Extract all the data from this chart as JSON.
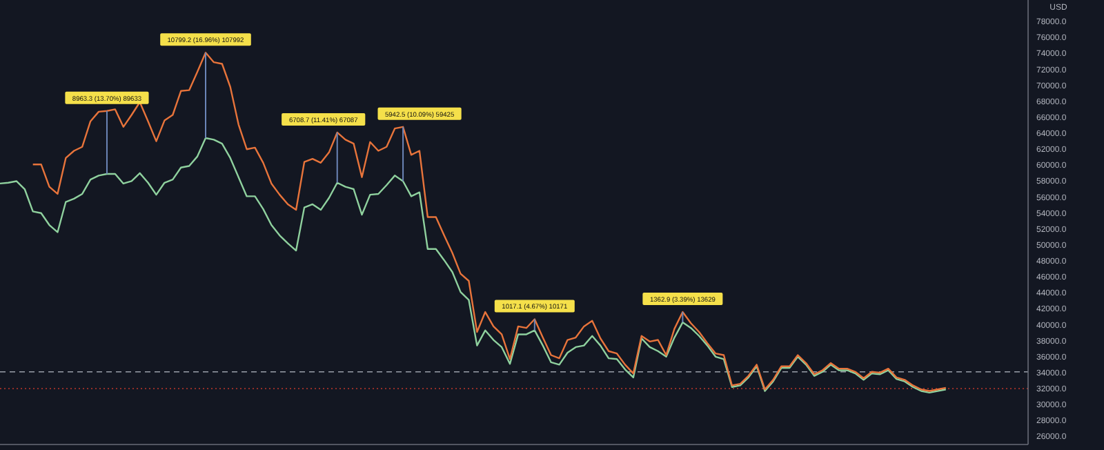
{
  "chart_data": {
    "type": "line",
    "ylabel": "USD",
    "categories": [
      null,
      null,
      null,
      null,
      null,
      null,
      null,
      null,
      null,
      null,
      null,
      null,
      null,
      null,
      null,
      null,
      null,
      null,
      null,
      null,
      null,
      null,
      null,
      null,
      null,
      null,
      null,
      null,
      null,
      null,
      null,
      null,
      null,
      null,
      null,
      null,
      null,
      null,
      null,
      null,
      null,
      null,
      null,
      null,
      null,
      null,
      null,
      null,
      null,
      null,
      null,
      null,
      null,
      null,
      null,
      null,
      null,
      null,
      null,
      null,
      null,
      null,
      null,
      null,
      null,
      null,
      null,
      null,
      null,
      null,
      null,
      null,
      null,
      null,
      null,
      null,
      null,
      null,
      null,
      null,
      null,
      null,
      null,
      null,
      null,
      null,
      null,
      null,
      null,
      null,
      null,
      null,
      null,
      null,
      null,
      null,
      null,
      null,
      null,
      null,
      null,
      null,
      null,
      null,
      null,
      null,
      null,
      null,
      null,
      null,
      null,
      null,
      null,
      null,
      null,
      null,
      null,
      null,
      null,
      null,
      null,
      null,
      null,
      null,
      null
    ],
    "series": [
      {
        "color": "#8fd19e",
        "values": [
          57700,
          57800,
          58000,
          57000,
          54200,
          54000,
          52500,
          51600,
          55400,
          55800,
          56400,
          58200,
          58700,
          58900,
          58900,
          57700,
          58000,
          59000,
          57800,
          56300,
          57800,
          58200,
          59700,
          59900,
          61100,
          63400,
          63200,
          62700,
          60900,
          58500,
          56100,
          56100,
          54500,
          52500,
          51200,
          50200,
          49300,
          54700,
          55100,
          54400,
          55900,
          57800,
          57300,
          57000,
          53800,
          56300,
          56400,
          57500,
          58700,
          58000,
          56100,
          56600,
          49500,
          49500,
          48100,
          46600,
          44100,
          43100,
          37400,
          39300,
          38100,
          37200,
          35100,
          38800,
          38800,
          39300,
          37400,
          35300,
          35000,
          36500,
          37200,
          37400,
          38600,
          37400,
          35800,
          35700,
          34400,
          33400,
          38300,
          37200,
          36700,
          36000,
          38400,
          40300,
          39600,
          38600,
          37400,
          36000,
          35700,
          32200,
          32400,
          33400,
          34800,
          31700,
          32900,
          34600,
          34600,
          36000,
          35000,
          33600,
          34100,
          35000,
          34300,
          34300,
          33900,
          33100,
          33900,
          33800,
          34300,
          33200,
          32900,
          32200,
          31700,
          31500,
          31700,
          31900,
          null,
          null,
          null,
          null,
          null,
          null,
          null,
          null,
          null
        ]
      },
      {
        "color": "#e8743b",
        "values": [
          null,
          null,
          null,
          null,
          60100,
          60100,
          57300,
          56400,
          60900,
          61800,
          62300,
          65500,
          66700,
          66800,
          67000,
          64800,
          66300,
          67900,
          65500,
          63000,
          65600,
          66300,
          69300,
          69400,
          71700,
          74100,
          72900,
          72700,
          69800,
          65100,
          62000,
          62200,
          60300,
          57700,
          56300,
          55100,
          54400,
          60400,
          60800,
          60300,
          61600,
          64100,
          63200,
          62700,
          58500,
          62900,
          61800,
          62300,
          64600,
          64800,
          61300,
          61800,
          53500,
          53500,
          51200,
          49000,
          46400,
          45500,
          39100,
          41600,
          39800,
          38800,
          35700,
          39800,
          39600,
          40700,
          38400,
          36200,
          35800,
          38100,
          38400,
          39800,
          40500,
          38300,
          36700,
          36400,
          35000,
          33900,
          38600,
          37900,
          38100,
          36200,
          39500,
          41600,
          40200,
          39100,
          37700,
          36400,
          36200,
          32400,
          32600,
          33600,
          35000,
          31900,
          33100,
          34800,
          34800,
          36200,
          35200,
          33800,
          34300,
          35200,
          34500,
          34500,
          34100,
          33300,
          34100,
          34000,
          34500,
          33400,
          33100,
          32400,
          31900,
          31700,
          31900,
          32100,
          null,
          null,
          null,
          null,
          null,
          null,
          null,
          null,
          null
        ]
      }
    ],
    "ylim": [
      25000,
      80700
    ],
    "yticks": [
      {
        "value": 26000,
        "label": "26000.0"
      },
      {
        "value": 28000,
        "label": "28000.0"
      },
      {
        "value": 30000,
        "label": "30000.0"
      },
      {
        "value": 32000,
        "label": "32000.0"
      },
      {
        "value": 34000,
        "label": "34000.0"
      },
      {
        "value": 36000,
        "label": "36000.0"
      },
      {
        "value": 38000,
        "label": "38000.0"
      },
      {
        "value": 40000,
        "label": "40000.0"
      },
      {
        "value": 42000,
        "label": "42000.0"
      },
      {
        "value": 44000,
        "label": "44000.0"
      },
      {
        "value": 46000,
        "label": "46000.0"
      },
      {
        "value": 48000,
        "label": "48000.0"
      },
      {
        "value": 50000,
        "label": "50000.0"
      },
      {
        "value": 52000,
        "label": "52000.0"
      },
      {
        "value": 54000,
        "label": "54000.0"
      },
      {
        "value": 56000,
        "label": "56000.0"
      },
      {
        "value": 58000,
        "label": "58000.0"
      },
      {
        "value": 60000,
        "label": "60000.0"
      },
      {
        "value": 62000,
        "label": "62000.0"
      },
      {
        "value": 64000,
        "label": "64000.0"
      },
      {
        "value": 66000,
        "label": "66000.0"
      },
      {
        "value": 68000,
        "label": "68000.0"
      },
      {
        "value": 70000,
        "label": "70000.0"
      },
      {
        "value": 72000,
        "label": "72000.0"
      },
      {
        "value": 74000,
        "label": "74000.0"
      },
      {
        "value": 76000,
        "label": "76000.0"
      },
      {
        "value": 78000,
        "label": "78000.0"
      }
    ],
    "ref_lines": [
      {
        "axis": "y",
        "value": 34100,
        "color": "#9aa0aa",
        "line_style": "dashed"
      },
      {
        "axis": "y",
        "value": 32000,
        "color": "#c0392b",
        "line_style": "dotted"
      }
    ],
    "annotations": [
      "8963.3 (13.70%) 89633",
      "10799.2 (16.96%) 107992",
      "6708.7 (11.41%) 67087",
      "5942.5 (10.09%) 59425",
      "1017.1 (4.67%) 10171",
      "1362.9 (3.39%) 13629"
    ],
    "tick_labels": "y",
    "grid": false,
    "marker": "none",
    "line_style": "solid"
  }
}
